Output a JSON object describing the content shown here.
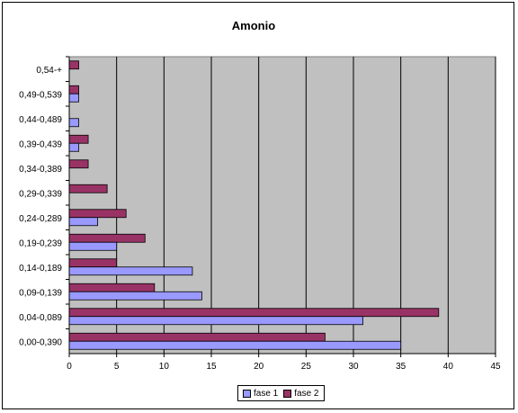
{
  "chart_data": {
    "type": "bar",
    "orientation": "horizontal",
    "title": "Amonio",
    "categories": [
      "0,00-0,390",
      "0,04-0,089",
      "0,09-0,139",
      "0,14-0,189",
      "0,19-0,239",
      "0,24-0,289",
      "0,29-0,339",
      "0,34-0,389",
      "0,39-0,439",
      "0,44-0,489",
      "0,49-0,539",
      "0,54-+"
    ],
    "series": [
      {
        "name": "fase 1",
        "color": "#9999ff",
        "values": [
          35,
          31,
          14,
          13,
          5,
          3,
          0,
          0,
          1,
          1,
          1,
          0
        ]
      },
      {
        "name": "fase 2",
        "color": "#993366",
        "values": [
          27,
          39,
          9,
          5,
          8,
          6,
          4,
          2,
          2,
          0,
          1,
          1
        ]
      }
    ],
    "xlim": [
      0,
      45
    ],
    "xticks": [
      0,
      5,
      10,
      15,
      20,
      25,
      30,
      35,
      40,
      45
    ],
    "plot_background": "#c0c0c0",
    "grid": true,
    "legend_position": "bottom"
  }
}
